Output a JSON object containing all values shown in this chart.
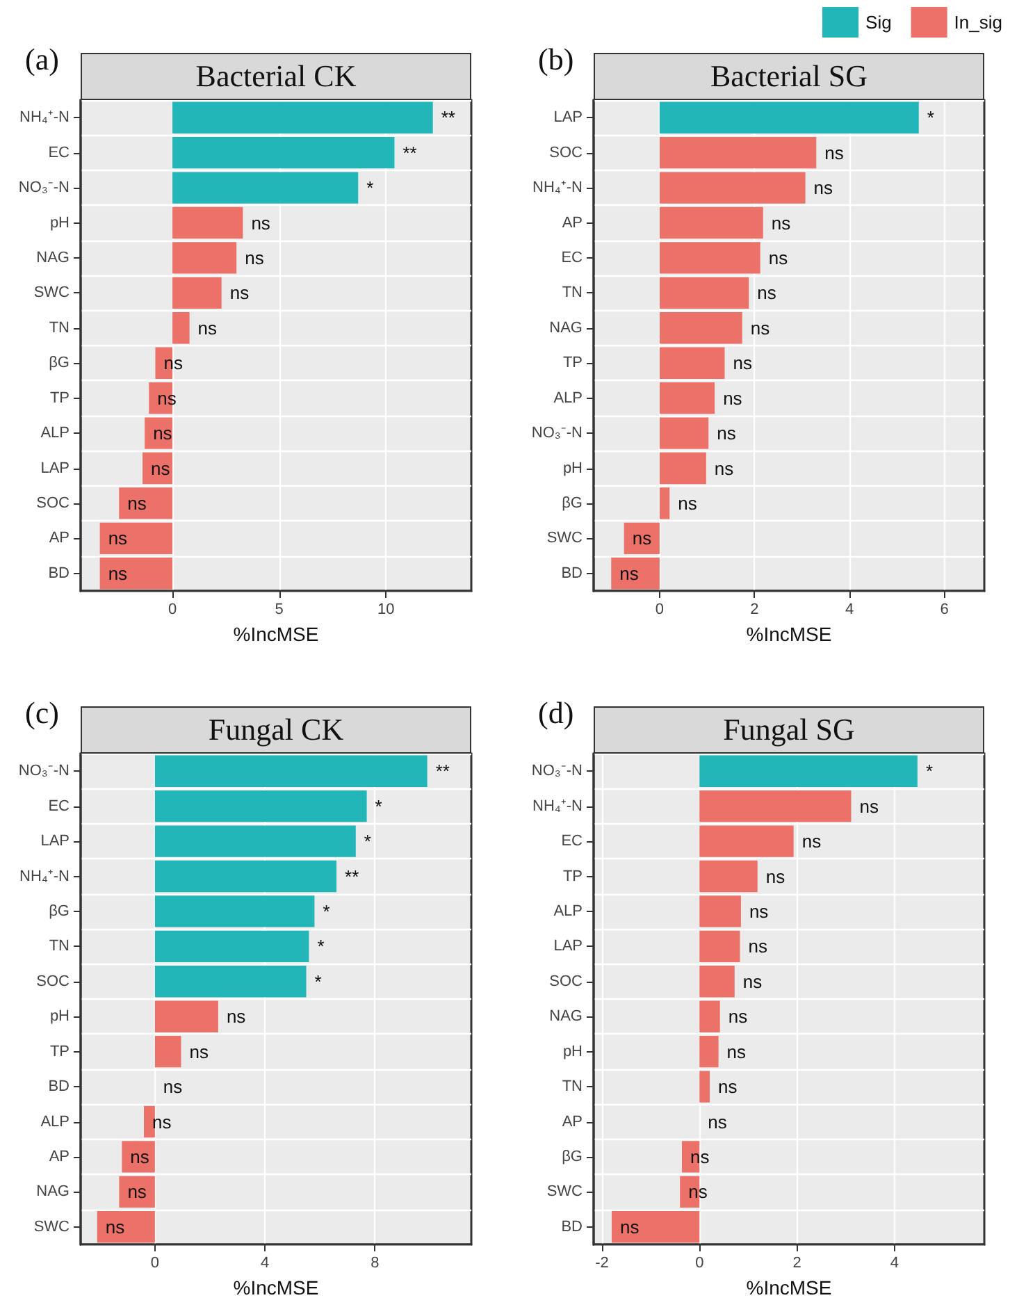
{
  "chart_data": [
    {
      "type": "bar",
      "orientation": "horizontal",
      "title": "Bacterial CK",
      "xlabel": "%IncMSE",
      "annotations": [
        "(a)"
      ],
      "categories": [
        "NH₄⁺-N",
        "EC",
        "NO₃⁻-N",
        "pH",
        "NAG",
        "SWC",
        "TN",
        "βG",
        "TP",
        "ALP",
        "LAP",
        "SOC",
        "AP",
        "BD"
      ],
      "series": [
        {
          "color": "#23b6b8",
          "values": [
            12.2,
            10.4,
            8.7,
            null,
            null,
            null,
            null,
            null,
            null,
            null,
            null,
            null,
            null,
            null
          ],
          "value_labels": [
            "**",
            "**",
            "*",
            null,
            null,
            null,
            null,
            null,
            null,
            null,
            null,
            null,
            null,
            null
          ]
        },
        {
          "color": "#ec7168",
          "values": [
            null,
            null,
            null,
            3.3,
            3.0,
            2.3,
            0.8,
            -0.8,
            -1.1,
            -1.3,
            -1.4,
            -2.5,
            -3.4,
            -3.4
          ],
          "value_labels": [
            null,
            null,
            null,
            "ns",
            "ns",
            "ns",
            "ns",
            "ns",
            "ns",
            "ns",
            "ns",
            "ns",
            "ns",
            "ns"
          ]
        }
      ],
      "xlim": [
        -4.3,
        14.0
      ],
      "xticks": [
        0,
        5,
        10
      ],
      "grid": true,
      "legend": false
    },
    {
      "type": "bar",
      "orientation": "horizontal",
      "title": "Bacterial SG",
      "xlabel": "%IncMSE",
      "annotations": [
        "(b)"
      ],
      "categories": [
        "LAP",
        "SOC",
        "NH₄⁺-N",
        "AP",
        "EC",
        "TN",
        "NAG",
        "TP",
        "ALP",
        "NO₃⁻-N",
        "pH",
        "βG",
        "SWC",
        "BD"
      ],
      "series": [
        {
          "name": "Sig",
          "color": "#23b6b8",
          "values": [
            5.46,
            null,
            null,
            null,
            null,
            null,
            null,
            null,
            null,
            null,
            null,
            null,
            null,
            null
          ],
          "value_labels": [
            "*",
            null,
            null,
            null,
            null,
            null,
            null,
            null,
            null,
            null,
            null,
            null,
            null,
            null
          ]
        },
        {
          "name": "In_sig",
          "color": "#ec7168",
          "values": [
            null,
            3.3,
            3.07,
            2.18,
            2.12,
            1.88,
            1.74,
            1.37,
            1.16,
            1.03,
            0.98,
            0.21,
            -0.75,
            -1.02
          ],
          "value_labels": [
            null,
            "ns",
            "ns",
            "ns",
            "ns",
            "ns",
            "ns",
            "ns",
            "ns",
            "ns",
            "ns",
            "ns",
            "ns",
            "ns"
          ]
        }
      ],
      "xlim": [
        -1.39,
        6.84
      ],
      "xticks": [
        0,
        2,
        4,
        6
      ],
      "grid": true,
      "legend": "top right"
    },
    {
      "type": "bar",
      "orientation": "horizontal",
      "title": "Fungal CK",
      "xlabel": "%IncMSE",
      "annotations": [
        "(c)"
      ],
      "categories": [
        "NO₃⁻-N",
        "EC",
        "LAP",
        "NH₄⁺-N",
        "βG",
        "TN",
        "SOC",
        "pH",
        "TP",
        "BD",
        "ALP",
        "AP",
        "NAG",
        "SWC"
      ],
      "series": [
        {
          "color": "#23b6b8",
          "values": [
            9.9,
            7.7,
            7.3,
            6.6,
            5.8,
            5.6,
            5.5,
            null,
            null,
            null,
            null,
            null,
            null,
            null
          ],
          "value_labels": [
            "**",
            "*",
            "*",
            "**",
            "*",
            "*",
            "*",
            null,
            null,
            null,
            null,
            null,
            null,
            null
          ]
        },
        {
          "color": "#ec7168",
          "values": [
            null,
            null,
            null,
            null,
            null,
            null,
            null,
            2.3,
            0.95,
            0,
            -0.4,
            -1.2,
            -1.3,
            -2.1
          ],
          "value_labels": [
            null,
            null,
            null,
            null,
            null,
            null,
            null,
            "ns",
            "ns",
            "ns",
            "ns",
            "ns",
            "ns",
            "ns"
          ]
        }
      ],
      "xlim": [
        -2.7,
        11.5
      ],
      "xticks": [
        0,
        4,
        8
      ],
      "grid": true,
      "legend": false
    },
    {
      "type": "bar",
      "orientation": "horizontal",
      "title": "Fungal SG",
      "xlabel": "%IncMSE",
      "annotations": [
        "(d)"
      ],
      "categories": [
        "NO₃⁻-N",
        "NH₄⁺-N",
        "EC",
        "TP",
        "ALP",
        "LAP",
        "SOC",
        "NAG",
        "pH",
        "TN",
        "AP",
        "βG",
        "SWC",
        "BD"
      ],
      "series": [
        {
          "color": "#23b6b8",
          "values": [
            4.47,
            null,
            null,
            null,
            null,
            null,
            null,
            null,
            null,
            null,
            null,
            null,
            null,
            null
          ],
          "value_labels": [
            "*",
            null,
            null,
            null,
            null,
            null,
            null,
            null,
            null,
            null,
            null,
            null,
            null,
            null
          ]
        },
        {
          "color": "#ec7168",
          "values": [
            null,
            3.11,
            1.93,
            1.19,
            0.85,
            0.83,
            0.72,
            0.42,
            0.39,
            0.21,
            0,
            -0.36,
            -0.4,
            -1.8
          ],
          "value_labels": [
            null,
            "ns",
            "ns",
            "ns",
            "ns",
            "ns",
            "ns",
            "ns",
            "ns",
            "ns",
            "ns",
            "ns",
            "ns",
            "ns"
          ]
        }
      ],
      "xlim": [
        -2.17,
        5.84
      ],
      "xticks": [
        -2,
        0,
        2,
        4
      ],
      "grid": true,
      "legend": false
    }
  ]
}
